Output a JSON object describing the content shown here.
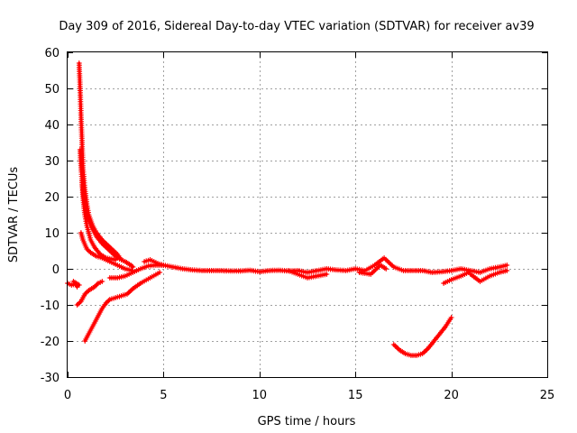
{
  "chart_data": {
    "type": "scatter",
    "title": "Day 309 of 2016, Sidereal Day-to-day VTEC variation (SDTVAR) for receiver av39",
    "xlabel": "GPS time / hours",
    "ylabel": "SDTVAR / TECUs",
    "xlim": [
      0,
      25
    ],
    "ylim": [
      -30,
      60
    ],
    "xticks": [
      0,
      5,
      10,
      15,
      20,
      25
    ],
    "yticks": [
      -30,
      -20,
      -10,
      0,
      10,
      20,
      30,
      40,
      50,
      60
    ],
    "grid": true,
    "marker": "+",
    "series": [
      {
        "name": "sdtvar",
        "color": "#ff0000",
        "segments": [
          {
            "x": [
              0.0,
              0.2,
              0.4,
              0.5
            ],
            "y": [
              -4,
              -4.5,
              -4.2,
              -5
            ]
          },
          {
            "x": [
              0.3,
              0.6
            ],
            "y": [
              -3.5,
              -4.5
            ]
          },
          {
            "x": [
              0.6,
              0.65,
              0.7,
              0.75,
              0.8,
              0.9,
              1.0,
              1.1,
              1.3,
              1.5,
              1.8,
              2.2,
              2.6,
              2.8
            ],
            "y": [
              57,
              50,
              42,
              35,
              28,
              22,
              18,
              15,
              12,
              10,
              8,
              6,
              4,
              2.5
            ]
          },
          {
            "x": [
              0.65,
              0.7,
              0.8,
              0.9,
              1.0,
              1.2,
              1.5,
              1.8,
              2.2,
              2.6,
              3.0,
              3.3,
              3.4
            ],
            "y": [
              33,
              28,
              22,
              18,
              15,
              12,
              9,
              7,
              5,
              3,
              2,
              1,
              0.5
            ]
          },
          {
            "x": [
              0.75,
              0.8,
              0.9,
              1.0,
              1.2,
              1.4,
              1.7,
              2.0,
              2.5
            ],
            "y": [
              25,
              20,
              15,
              12,
              8,
              6,
              4,
              3,
              2.5
            ]
          },
          {
            "x": [
              0.7,
              0.8,
              1.0,
              1.2,
              1.5,
              1.8,
              2.2,
              2.6,
              3.0,
              3.4
            ],
            "y": [
              10,
              8,
              5.5,
              4.5,
              3.5,
              3,
              2,
              1,
              0,
              -0.5
            ]
          },
          {
            "x": [
              0.5,
              0.7,
              0.9,
              1.1,
              1.4,
              1.6,
              1.8
            ],
            "y": [
              -10,
              -9,
              -7,
              -6,
              -5,
              -4,
              -3.5
            ]
          },
          {
            "x": [
              0.9,
              1.0,
              1.2,
              1.4,
              1.6,
              1.8,
              2.0,
              2.2,
              2.5,
              2.8,
              3.1,
              3.4,
              3.8,
              4.3,
              4.8
            ],
            "y": [
              -20,
              -19,
              -17,
              -15,
              -13,
              -11,
              -9.5,
              -8.5,
              -8,
              -7.5,
              -7,
              -5.5,
              -4,
              -2.5,
              -1
            ]
          },
          {
            "x": [
              2.2,
              2.6,
              3.0,
              3.4,
              3.8,
              4.2,
              4.6,
              5.0
            ],
            "y": [
              -2.5,
              -2.5,
              -2,
              -1,
              0,
              0.8,
              1,
              1
            ]
          },
          {
            "x": [
              4.0,
              4.3,
              4.7,
              5.0,
              5.5,
              6.0,
              6.5,
              7.0,
              7.5,
              8.0,
              8.5,
              9.0,
              9.5,
              10.0,
              10.5,
              11.0,
              11.5,
              12.0,
              12.5,
              13.0,
              13.5,
              14.0,
              14.5,
              15.0,
              15.5,
              16.0,
              16.5,
              17.0,
              17.5,
              18.0,
              18.5,
              19.0,
              19.5,
              20.0,
              20.5,
              21.0,
              21.5,
              22.0,
              22.5,
              22.9
            ],
            "y": [
              2,
              2.5,
              1.5,
              1,
              0.5,
              0,
              -0.3,
              -0.5,
              -0.5,
              -0.5,
              -0.6,
              -0.6,
              -0.4,
              -0.8,
              -0.5,
              -0.4,
              -0.6,
              -0.5,
              -1,
              -0.5,
              0,
              -0.3,
              -0.5,
              0,
              -0.5,
              1,
              3,
              0.5,
              -0.5,
              -0.5,
              -0.5,
              -1,
              -0.8,
              -0.5,
              0,
              -0.5,
              -1,
              0,
              0.5,
              1
            ]
          },
          {
            "x": [
              11.5,
              12.0,
              12.5,
              13.0,
              13.5
            ],
            "y": [
              -0.5,
              -1.5,
              -2.5,
              -2,
              -1.5
            ]
          },
          {
            "x": [
              15.2,
              15.8,
              16.3,
              16.6
            ],
            "y": [
              -1,
              -1.5,
              1,
              0
            ]
          },
          {
            "x": [
              19.6,
              20.0,
              20.5,
              20.9
            ],
            "y": [
              -4,
              -3,
              -2,
              -1
            ]
          },
          {
            "x": [
              21.0,
              21.5,
              22.0,
              22.5,
              22.9
            ],
            "y": [
              -1.5,
              -3.5,
              -2,
              -1,
              -0.5
            ]
          },
          {
            "x": [
              17.0,
              17.3,
              17.6,
              17.9,
              18.2,
              18.5,
              18.8,
              19.1,
              19.4,
              19.7,
              20.0
            ],
            "y": [
              -21,
              -22.5,
              -23.5,
              -24,
              -24,
              -23.5,
              -22,
              -20,
              -18,
              -16,
              -13.5
            ]
          }
        ]
      }
    ]
  }
}
